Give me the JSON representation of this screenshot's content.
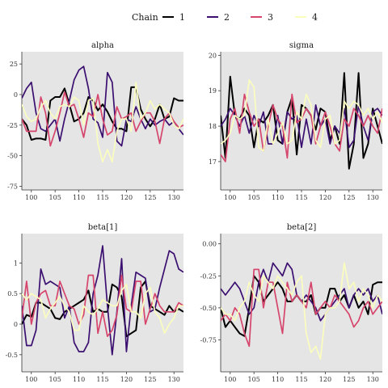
{
  "legend": {
    "title": "Chain"
  },
  "chart_data": {
    "type": "line",
    "legend_position": "top",
    "grid": false,
    "x_ticks": [
      100,
      105,
      110,
      115,
      120,
      125,
      130
    ],
    "xlim": [
      98,
      132
    ],
    "x": [
      98,
      99,
      100,
      101,
      102,
      103,
      104,
      105,
      106,
      107,
      108,
      109,
      110,
      111,
      112,
      113,
      114,
      115,
      116,
      117,
      118,
      119,
      120,
      121,
      122,
      123,
      124,
      125,
      126,
      127,
      128,
      129,
      130,
      131,
      132
    ],
    "chains": [
      {
        "name": "1",
        "color": "#000000"
      },
      {
        "name": "2",
        "color": "#3b0f70"
      },
      {
        "name": "3",
        "color": "#d6456c"
      },
      {
        "name": "4",
        "color": "#fbfdbf"
      }
    ],
    "panels": [
      {
        "title": "alpha",
        "ylim": [
          -78,
          35
        ],
        "y_ticks": [
          25,
          0,
          -25,
          -50,
          -75
        ],
        "series": [
          [
            -20,
            -25,
            -37,
            -36,
            -36,
            -37,
            -5,
            -2,
            -2,
            5,
            -8,
            -22,
            -20,
            -15,
            -2,
            -5,
            -13,
            -8,
            -14,
            -22,
            -28,
            -28,
            -30,
            6,
            6,
            -12,
            -20,
            -26,
            -20,
            -8,
            -20,
            -18,
            -3,
            -5,
            -5
          ],
          [
            -3,
            5,
            10,
            -15,
            -28,
            -30,
            -25,
            -20,
            -38,
            -20,
            -5,
            12,
            20,
            23,
            5,
            -20,
            -23,
            -35,
            18,
            10,
            -38,
            -42,
            -20,
            -22,
            -10,
            -20,
            -28,
            -20,
            -25,
            -22,
            -20,
            -25,
            -22,
            -28,
            -33
          ],
          [
            -20,
            -30,
            -30,
            -30,
            -2,
            -15,
            -42,
            -30,
            -15,
            2,
            -10,
            -8,
            -20,
            -35,
            -15,
            -18,
            0,
            -20,
            -33,
            -30,
            -10,
            -20,
            -18,
            -15,
            -30,
            -22,
            -15,
            -15,
            -22,
            -40,
            -20,
            -15,
            -22,
            -27,
            -25
          ],
          [
            -8,
            -18,
            -22,
            -20,
            -10,
            -5,
            -15,
            -20,
            -10,
            -8,
            -10,
            -2,
            -5,
            -25,
            -5,
            -3,
            -40,
            -55,
            -45,
            -55,
            -30,
            -20,
            -20,
            -30,
            10,
            -20,
            -15,
            -5,
            -12,
            -8,
            -12,
            -15,
            -25,
            -28,
            -20
          ]
        ]
      },
      {
        "title": "sigma",
        "ylim": [
          16.2,
          20.1
        ],
        "y_ticks": [
          20,
          19,
          18,
          17
        ],
        "series": [
          [
            18.3,
            17.1,
            19.4,
            18.3,
            18.2,
            18.5,
            18.3,
            17.4,
            18.2,
            18.1,
            18.3,
            18.6,
            17.6,
            17.5,
            18.4,
            18.8,
            17.2,
            18.6,
            18.5,
            18.3,
            17.9,
            18.5,
            18.4,
            17.6,
            18.0,
            17.5,
            19.5,
            16.8,
            17.5,
            19.5,
            17.1,
            17.5,
            18.5,
            18.0,
            17.5
          ],
          [
            18.0,
            18.2,
            18.5,
            18.3,
            18.0,
            18.3,
            17.8,
            18.3,
            18.0,
            18.4,
            17.5,
            17.5,
            18.3,
            17.5,
            18.4,
            18.2,
            18.3,
            17.4,
            18.2,
            17.5,
            18.6,
            18.0,
            18.2,
            17.5,
            18.0,
            17.8,
            18.5,
            17.4,
            17.6,
            18.6,
            18.0,
            17.6,
            18.4,
            18.5,
            18.3
          ],
          [
            17.2,
            17.0,
            18.2,
            18.5,
            17.8,
            18.9,
            18.4,
            18.0,
            18.2,
            17.3,
            18.0,
            18.6,
            18.2,
            18.0,
            17.1,
            18.9,
            18.1,
            18.2,
            18.5,
            18.3,
            17.5,
            18.0,
            18.4,
            18.0,
            17.5,
            17.3,
            18.2,
            18.0,
            18.5,
            18.3,
            18.0,
            18.3,
            18.0,
            17.8,
            18.5
          ],
          [
            17.5,
            17.6,
            17.8,
            18.3,
            18.2,
            18.3,
            19.3,
            19.1,
            17.4,
            17.3,
            18.2,
            17.5,
            17.8,
            18.1,
            17.5,
            17.6,
            18.4,
            18.2,
            18.9,
            18.6,
            17.6,
            17.4,
            18.2,
            18.3,
            17.5,
            17.6,
            18.7,
            18.5,
            18.7,
            18.6,
            18.3,
            18.5,
            18.2,
            18.4,
            18.1
          ]
        ]
      },
      {
        "title": "beta[1]",
        "ylim": [
          -0.78,
          1.48
        ],
        "y_ticks": [
          1.0,
          0.5,
          0.0,
          -0.5
        ],
        "series": [
          [
            0.0,
            0.15,
            0.12,
            0.35,
            0.35,
            0.3,
            0.25,
            0.1,
            0.08,
            0.2,
            0.25,
            0.3,
            0.35,
            0.4,
            0.55,
            0.2,
            0.25,
            0.2,
            0.2,
            0.65,
            0.6,
            0.45,
            -0.2,
            -0.15,
            -0.1,
            0.6,
            0.7,
            0.3,
            0.25,
            0.2,
            0.15,
            0.3,
            0.2,
            0.25,
            0.2
          ],
          [
            0.3,
            -0.35,
            -0.35,
            -0.1,
            0.9,
            0.65,
            0.7,
            0.65,
            0.6,
            0.1,
            0.3,
            -0.3,
            -0.45,
            -0.45,
            -0.3,
            0.5,
            0.8,
            1.28,
            0.3,
            -0.5,
            0.2,
            1.07,
            -0.45,
            0.3,
            0.85,
            0.8,
            0.75,
            0.2,
            0.25,
            0.6,
            0.9,
            1.2,
            1.15,
            0.9,
            0.85
          ],
          [
            0.1,
            0.7,
            0.0,
            0.35,
            0.5,
            0.55,
            0.3,
            0.3,
            0.7,
            0.5,
            0.3,
            0.25,
            0.0,
            0.15,
            0.8,
            0.8,
            -0.15,
            0.2,
            -0.2,
            -0.1,
            0.15,
            0.8,
            0.25,
            0.2,
            0.7,
            0.7,
            0.0,
            0.25,
            0.5,
            0.3,
            0.2,
            0.2,
            0.2,
            0.35,
            0.3
          ],
          [
            0.5,
            0.4,
            0.5,
            0.45,
            0.4,
            0.1,
            0.25,
            0.35,
            0.45,
            0.3,
            0.2,
            -0.1,
            -0.1,
            0.3,
            0.2,
            0.15,
            0.25,
            0.4,
            0.35,
            0.3,
            0.3,
            0.55,
            0.65,
            0.2,
            0.2,
            0.1,
            0.5,
            0.6,
            0.2,
            0.1,
            -0.15,
            0.0,
            0.1,
            0.3,
            0.3
          ]
        ]
      },
      {
        "title": "beta[2]",
        "ylim": [
          -1.0,
          0.08
        ],
        "y_ticks": [
          0.0,
          -0.25,
          -0.5,
          -0.75
        ],
        "series": [
          [
            -0.5,
            -0.65,
            -0.6,
            -0.65,
            -0.7,
            -0.72,
            -0.5,
            -0.25,
            -0.3,
            -0.45,
            -0.4,
            -0.35,
            -0.3,
            -0.35,
            -0.45,
            -0.45,
            -0.4,
            -0.45,
            -0.45,
            -0.4,
            -0.55,
            -0.5,
            -0.5,
            -0.35,
            -0.35,
            -0.45,
            -0.4,
            -0.5,
            -0.4,
            -0.5,
            -0.45,
            -0.55,
            -0.32,
            -0.3,
            -0.3
          ],
          [
            -0.35,
            -0.4,
            -0.35,
            -0.3,
            -0.35,
            -0.45,
            -0.55,
            -0.5,
            -0.3,
            -0.2,
            -0.3,
            -0.15,
            -0.2,
            -0.25,
            -0.15,
            -0.2,
            -0.4,
            -0.45,
            -0.4,
            -0.45,
            -0.5,
            -0.6,
            -0.55,
            -0.5,
            -0.45,
            -0.4,
            -0.35,
            -0.5,
            -0.4,
            -0.35,
            -0.4,
            -0.35,
            -0.45,
            -0.4,
            -0.55
          ],
          [
            -0.6,
            -0.55,
            -0.6,
            -0.5,
            -0.55,
            -0.7,
            -0.8,
            -0.2,
            -0.2,
            -0.5,
            -0.3,
            -0.3,
            -0.5,
            -0.7,
            -0.3,
            -0.45,
            -0.4,
            -0.45,
            -0.5,
            -0.3,
            -0.55,
            -0.5,
            -0.45,
            -0.5,
            -0.4,
            -0.45,
            -0.5,
            -0.55,
            -0.65,
            -0.6,
            -0.5,
            -0.45,
            -0.55,
            -0.5,
            -0.45
          ],
          [
            -0.5,
            -0.55,
            -0.55,
            -0.6,
            -0.5,
            -0.45,
            -0.3,
            -0.4,
            -0.45,
            -0.25,
            -0.3,
            -0.35,
            -0.25,
            -0.3,
            -0.35,
            -0.4,
            -0.3,
            -0.25,
            -0.7,
            -0.85,
            -0.8,
            -0.9,
            -0.55,
            -0.5,
            -0.5,
            -0.45,
            -0.15,
            -0.35,
            -0.3,
            -0.45,
            -0.35,
            -0.4,
            -0.5,
            -0.4,
            -0.45
          ]
        ]
      }
    ]
  }
}
